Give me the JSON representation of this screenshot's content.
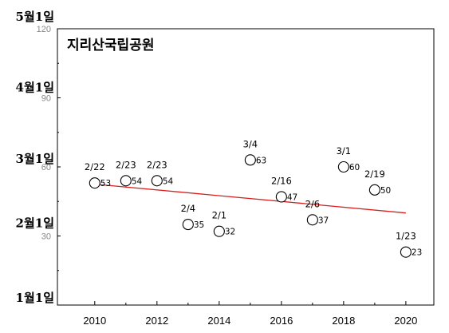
{
  "chart_data": {
    "type": "scatter",
    "title": "지리산국립공원",
    "xlim": [
      2008.8,
      2020.9
    ],
    "ylim": [
      0,
      120
    ],
    "xticks": [
      2010,
      2012,
      2014,
      2016,
      2018,
      2020
    ],
    "xtick_labels": [
      "2010",
      "2012",
      "2014",
      "2016",
      "2018",
      "2020"
    ],
    "yticks": [
      30,
      60,
      90,
      120
    ],
    "ytick_labels": [
      "30",
      "60",
      "90",
      "120"
    ],
    "month_labels": [
      {
        "y": 0,
        "label": "1월1일"
      },
      {
        "y": 31,
        "label": "2월1일"
      },
      {
        "y": 59,
        "label": "3월1일"
      },
      {
        "y": 90,
        "label": "4월1일"
      },
      {
        "y": 120,
        "label": "5월1일"
      }
    ],
    "points": [
      {
        "x": 2010,
        "y": 53,
        "date": "2/22",
        "value": "53"
      },
      {
        "x": 2011,
        "y": 54,
        "date": "2/23",
        "value": "54"
      },
      {
        "x": 2012,
        "y": 54,
        "date": "2/23",
        "value": "54"
      },
      {
        "x": 2013,
        "y": 35,
        "date": "2/4",
        "value": "35"
      },
      {
        "x": 2014,
        "y": 32,
        "date": "2/1",
        "value": "32"
      },
      {
        "x": 2015,
        "y": 63,
        "date": "3/4",
        "value": "63"
      },
      {
        "x": 2016,
        "y": 47,
        "date": "2/16",
        "value": "47"
      },
      {
        "x": 2017,
        "y": 37,
        "date": "2/6",
        "value": "37"
      },
      {
        "x": 2018,
        "y": 60,
        "date": "3/1",
        "value": "60"
      },
      {
        "x": 2019,
        "y": 50,
        "date": "2/19",
        "value": "50"
      },
      {
        "x": 2020,
        "y": 23,
        "date": "1/23",
        "value": "23"
      }
    ],
    "trendline": {
      "x": [
        2010,
        2020
      ],
      "y": [
        52.5,
        40
      ],
      "color": "#d62020"
    },
    "grid": false
  }
}
